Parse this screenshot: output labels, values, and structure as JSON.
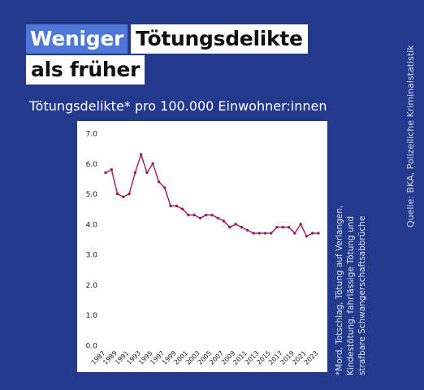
{
  "header": {
    "title_highlight": "Weniger",
    "title_rest": "Tötungsdelikte",
    "title_line2": "als früher",
    "subtitle": "Tötungsdelikte* pro 100.000 Einwohner:innen"
  },
  "source": "Quelle: BKA, Polizeiliche Kriminalstatistik",
  "footnote": "*Mord, Totschlag, Tötung auf Verlangen, Kindestötung, fahrlässige Tötung und strafbare Schwangerschaftsabbrüche",
  "colors": {
    "background": "#22398c",
    "highlight": "#4f77d8",
    "line": "#9c1d52"
  },
  "chart_data": {
    "type": "line",
    "x": [
      1987,
      1988,
      1989,
      1990,
      1991,
      1992,
      1993,
      1994,
      1995,
      1996,
      1997,
      1998,
      1999,
      2000,
      2001,
      2002,
      2003,
      2004,
      2005,
      2006,
      2007,
      2008,
      2009,
      2010,
      2011,
      2012,
      2013,
      2014,
      2015,
      2016,
      2017,
      2018,
      2019,
      2020,
      2021,
      2022,
      2023
    ],
    "series": [
      {
        "values": [
          5.7,
          5.8,
          5.0,
          4.9,
          5.0,
          5.7,
          6.3,
          5.7,
          6.0,
          5.4,
          5.2,
          4.6,
          4.6,
          4.5,
          4.3,
          4.3,
          4.2,
          4.3,
          4.3,
          4.2,
          4.1,
          3.9,
          4.0,
          3.9,
          3.8,
          3.7,
          3.7,
          3.7,
          3.7,
          3.9,
          3.9,
          3.9,
          3.7,
          4.0,
          3.6,
          3.7,
          3.7
        ]
      }
    ],
    "x_ticks": [
      "1987",
      "1989",
      "1991",
      "1993",
      "1995",
      "1997",
      "1999",
      "2001",
      "2003",
      "2005",
      "2007",
      "2009",
      "2011",
      "2013",
      "2015",
      "2017",
      "2019",
      "2021",
      "2023"
    ],
    "y_ticks": [
      "0.0",
      "1.0",
      "2.0",
      "3.0",
      "4.0",
      "5.0",
      "6.0",
      "7.0"
    ],
    "ylim": [
      0,
      7
    ],
    "xlim": [
      1987,
      2023
    ],
    "grid": false,
    "legend": "none"
  }
}
